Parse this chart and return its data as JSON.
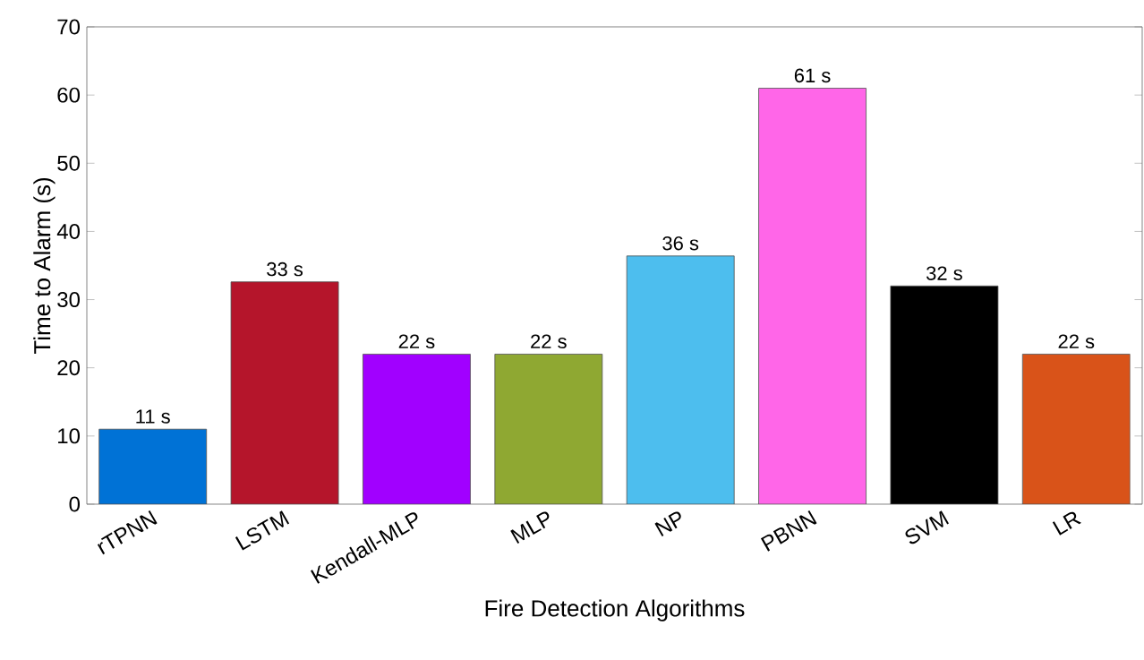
{
  "chart_data": {
    "type": "bar",
    "xlabel": "Fire Detection Algorithms",
    "ylabel": "Time to Alarm (s)",
    "categories": [
      "rTPNN",
      "LSTM",
      "Kendall-MLP",
      "MLP",
      "NP",
      "PBNN",
      "SVM",
      "LR"
    ],
    "values": [
      11,
      32.6,
      22,
      22,
      36.4,
      61,
      32,
      22
    ],
    "value_labels": [
      "11 s",
      "33 s",
      "22 s",
      "22 s",
      "36 s",
      "61 s",
      "32 s",
      "22 s"
    ],
    "colors": [
      "#0072d6",
      "#b5152b",
      "#a100ff",
      "#8fa832",
      "#4dbeee",
      "#ff66e8",
      "#000000",
      "#d95319"
    ],
    "ylim": [
      0,
      70
    ],
    "yticks": [
      0,
      10,
      20,
      30,
      40,
      50,
      60,
      70
    ],
    "grid": false
  }
}
